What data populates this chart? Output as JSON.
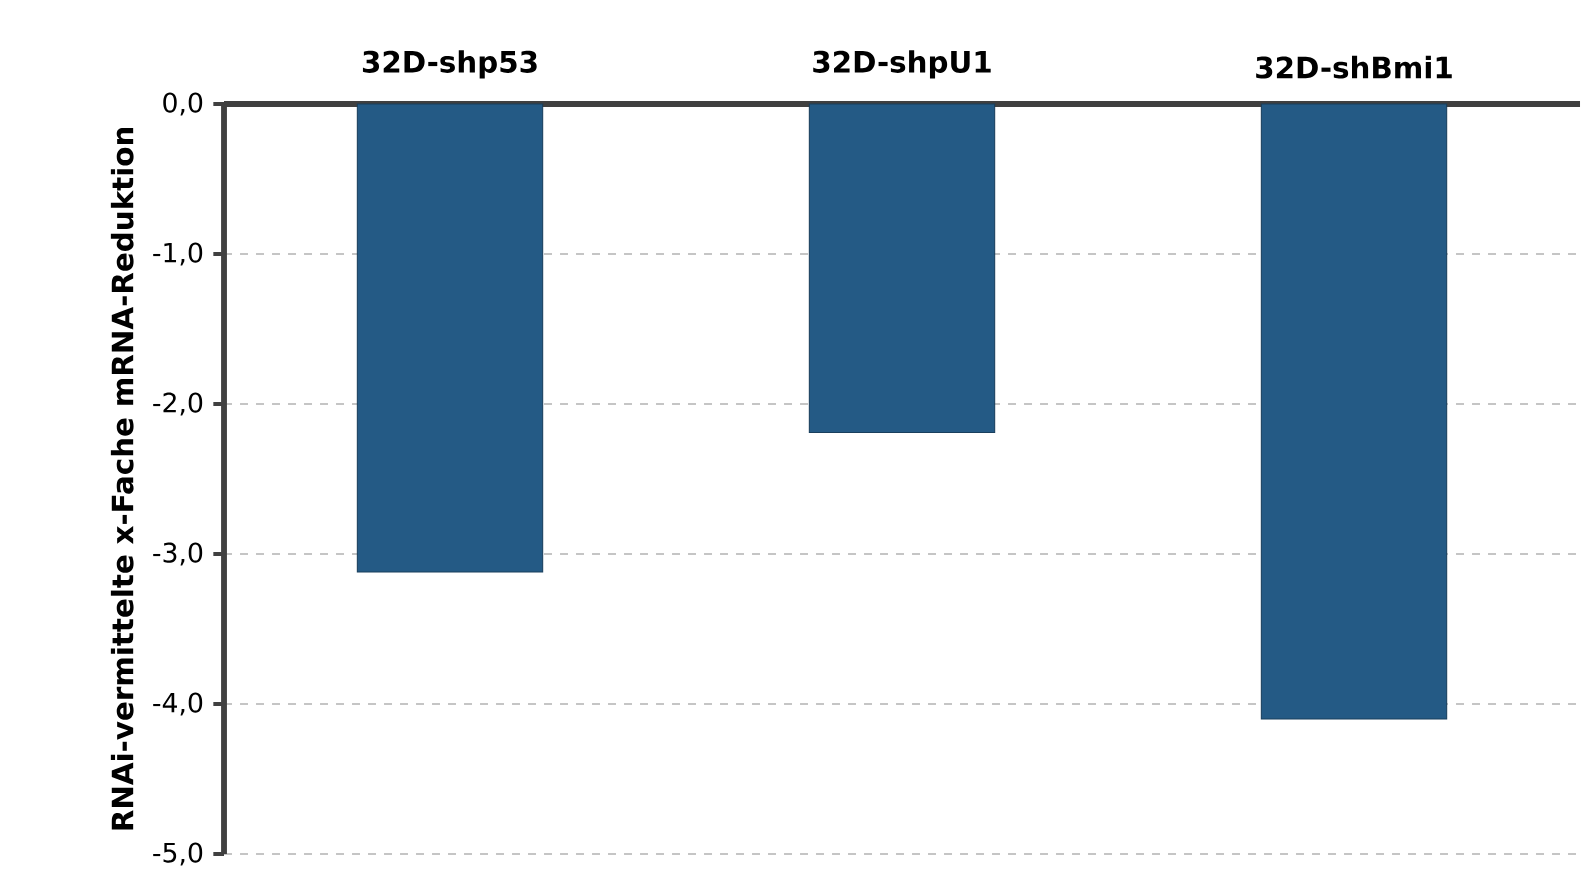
{
  "chart_data": {
    "type": "bar",
    "ylabel": "RNAi-vermittelte x-Fache mRNA-Reduktion",
    "categories": [
      "32D-shp53",
      "32D-shpU1",
      "32D-shBmi1"
    ],
    "values": [
      -3.12,
      -2.19,
      -4.1
    ],
    "color": "#245a85",
    "ylim": [
      -5,
      0
    ],
    "yticks": [
      {
        "value": 0,
        "label": "0,0"
      },
      {
        "value": -1,
        "label": "-1,0"
      },
      {
        "value": -2,
        "label": "-2,0"
      },
      {
        "value": -3,
        "label": "-3,0"
      },
      {
        "value": -4,
        "label": "-4,0"
      },
      {
        "value": -5,
        "label": "-5,0"
      }
    ],
    "grid": "y"
  }
}
